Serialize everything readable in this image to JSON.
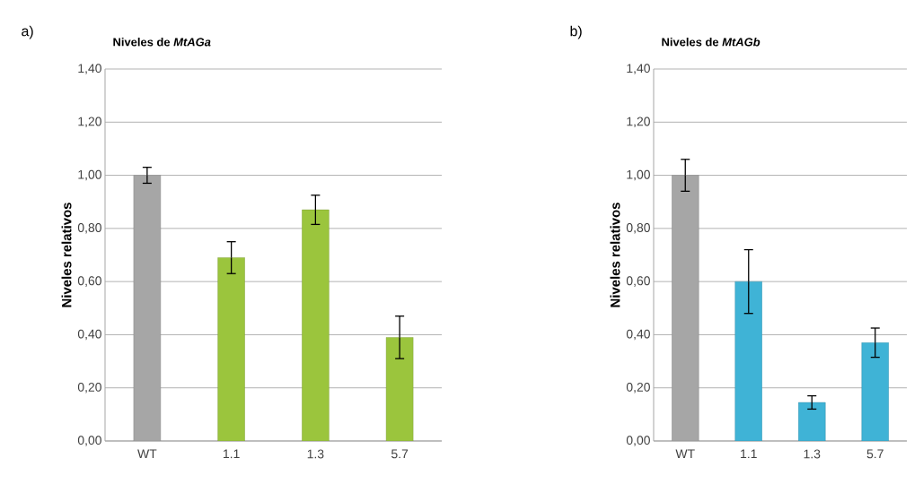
{
  "chart_data": [
    {
      "type": "bar",
      "title": "Niveles de *MtAGa*",
      "ylabel": "Niveles relativos",
      "annotations": [
        "a)"
      ],
      "categories": [
        "WT",
        "1.1",
        "1.3",
        "5.7"
      ],
      "values": [
        1.0,
        0.69,
        0.87,
        0.39
      ],
      "errors": [
        0.03,
        0.06,
        0.055,
        0.08
      ],
      "colors": [
        "#a6a6a6",
        "#9bc53d",
        "#9bc53d",
        "#9bc53d"
      ],
      "ylim": [
        0,
        1.4
      ],
      "yticks": [
        {
          "value": 0,
          "label": "0,00"
        },
        {
          "value": 0.2,
          "label": "0,20"
        },
        {
          "value": 0.4,
          "label": "0,40"
        },
        {
          "value": 0.6,
          "label": "0,60"
        },
        {
          "value": 0.8,
          "label": "0,80"
        },
        {
          "value": 1.0,
          "label": "1,00"
        },
        {
          "value": 1.2,
          "label": "1,20"
        },
        {
          "value": 1.4,
          "label": "1,40"
        }
      ],
      "grid": "y"
    },
    {
      "type": "bar",
      "title": "Niveles de *MtAGb*",
      "ylabel": "Niveles relativos",
      "annotations": [
        "b)"
      ],
      "categories": [
        "WT",
        "1.1",
        "1.3",
        "5.7"
      ],
      "values": [
        1.0,
        0.6,
        0.145,
        0.37
      ],
      "errors": [
        0.06,
        0.12,
        0.025,
        0.055
      ],
      "colors": [
        "#a6a6a6",
        "#3fb3d6",
        "#3fb3d6",
        "#3fb3d6"
      ],
      "ylim": [
        0,
        1.4
      ],
      "yticks": [
        {
          "value": 0,
          "label": "0,00"
        },
        {
          "value": 0.2,
          "label": "0,20"
        },
        {
          "value": 0.4,
          "label": "0,40"
        },
        {
          "value": 0.6,
          "label": "0,60"
        },
        {
          "value": 0.8,
          "label": "0,80"
        },
        {
          "value": 1.0,
          "label": "1,00"
        },
        {
          "value": 1.2,
          "label": "1,20"
        },
        {
          "value": 1.4,
          "label": "1,40"
        }
      ],
      "grid": "y"
    }
  ]
}
